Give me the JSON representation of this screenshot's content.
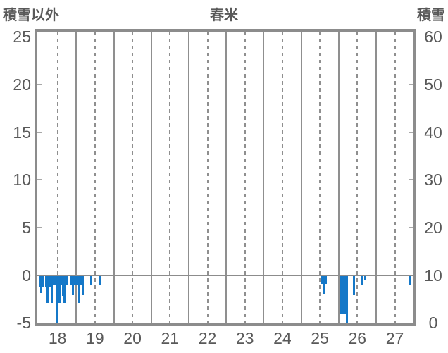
{
  "header": {
    "left_axis_title": "積雪以外",
    "title": "春米",
    "right_axis_title": "積雪"
  },
  "chart_data": {
    "type": "bar",
    "title": "春米",
    "left_axis": {
      "label": "積雪以外",
      "ticks": [
        25,
        20,
        15,
        10,
        5,
        0,
        -5
      ],
      "range": [
        -5,
        25
      ]
    },
    "right_axis": {
      "label": "積雪",
      "ticks": [
        60,
        50,
        40,
        30,
        20,
        10,
        0
      ],
      "range": [
        0,
        60
      ]
    },
    "x_axis": {
      "tick_labels": [
        "18",
        "19",
        "20",
        "21",
        "22",
        "23",
        "24",
        "25",
        "26",
        "27"
      ],
      "range": [
        17.46,
        27.48
      ],
      "solid_gridlines": [
        18.5,
        19.5,
        20.5,
        21.5,
        22.5,
        23.5,
        24.5,
        25.5,
        26.5
      ],
      "dashed_gridlines": [
        18,
        19,
        20,
        21,
        22,
        23,
        24,
        25,
        26,
        27
      ]
    },
    "grid": "on",
    "zero_line": 0,
    "legend": "none",
    "colors": {
      "bar": "#1578c8",
      "grid": "#8f8f8f",
      "border": "#8c8c8c",
      "text": "#595959"
    },
    "bars": [
      {
        "x": 17.53,
        "v": -1.2
      },
      {
        "x": 17.57,
        "v": -1.9
      },
      {
        "x": 17.6,
        "v": -1.2
      },
      {
        "x": 17.7,
        "v": -1.25
      },
      {
        "x": 17.74,
        "v": -2.9
      },
      {
        "x": 17.79,
        "v": -1.25
      },
      {
        "x": 17.84,
        "v": -2.9
      },
      {
        "x": 17.88,
        "v": -1.05
      },
      {
        "x": 17.92,
        "v": -1.05
      },
      {
        "x": 17.97,
        "v": -5.3
      },
      {
        "x": 18.01,
        "v": -1.05
      },
      {
        "x": 18.06,
        "v": -2.9
      },
      {
        "x": 18.1,
        "v": -1.05
      },
      {
        "x": 18.14,
        "v": -2.2
      },
      {
        "x": 18.19,
        "v": -2.9
      },
      {
        "x": 18.26,
        "v": -1.1
      },
      {
        "x": 18.35,
        "v": -1.0
      },
      {
        "x": 18.4,
        "v": -2.05
      },
      {
        "x": 18.45,
        "v": -1.0
      },
      {
        "x": 18.49,
        "v": -1.0
      },
      {
        "x": 18.53,
        "v": -1.0
      },
      {
        "x": 18.57,
        "v": -2.9
      },
      {
        "x": 18.62,
        "v": -1.0
      },
      {
        "x": 18.68,
        "v": -2.0
      },
      {
        "x": 18.9,
        "v": -1.1
      },
      {
        "x": 19.12,
        "v": -1.05
      },
      {
        "x": 25.06,
        "v": -0.95
      },
      {
        "x": 25.11,
        "v": -1.95
      },
      {
        "x": 25.16,
        "v": -0.95
      },
      {
        "x": 25.56,
        "v": -4.0
      },
      {
        "x": 25.62,
        "v": -4.0
      },
      {
        "x": 25.67,
        "v": -4.05
      },
      {
        "x": 25.73,
        "v": -5.3
      },
      {
        "x": 25.9,
        "v": -2.0
      },
      {
        "x": 26.12,
        "v": -1.0
      },
      {
        "x": 26.21,
        "v": -0.55
      },
      {
        "x": 27.41,
        "v": -1.0
      }
    ]
  }
}
